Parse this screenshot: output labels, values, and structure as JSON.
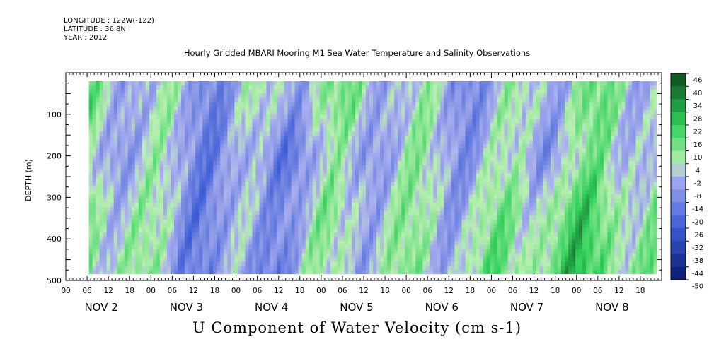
{
  "header": {
    "longitude": "LONGITUDE : 122W(-122)",
    "latitude": "LATITUDE : 36.8N",
    "year": "YEAR : 2012"
  },
  "chart_data": {
    "type": "heatmap",
    "title": "Hourly Gridded MBARI Mooring M1 Sea Water Temperature and Salinity Observations",
    "xlabel": "U Component of Water Velocity (cm s-1)",
    "ylabel": "DEPTH (m)",
    "y_ticks": [
      100,
      200,
      300,
      400,
      500
    ],
    "ylim": [
      500,
      0
    ],
    "x_hour_labels": [
      "00",
      "06",
      "12",
      "18"
    ],
    "days": [
      "NOV 2",
      "NOV 3",
      "NOV 4",
      "NOV 5",
      "NOV 6",
      "NOV 7",
      "NOV 8"
    ],
    "x_start_hour_label": "00",
    "colorbar_labels": [
      46,
      40,
      34,
      28,
      22,
      16,
      10,
      4,
      -2,
      -8,
      -14,
      -20,
      -26,
      -32,
      -38,
      -44,
      -50
    ],
    "colorbar_range": [
      -50,
      46
    ],
    "colorbar_colors": {
      "strong_negative": "#0a1a6e",
      "negative": "#3b5bd6",
      "near_zero_negative": "#aab0ee",
      "near_zero_positive": "#b8f0b0",
      "positive": "#2fd05a",
      "strong_positive": "#0b4a1a"
    },
    "data_depth_range": [
      20,
      485
    ],
    "grid": false
  }
}
